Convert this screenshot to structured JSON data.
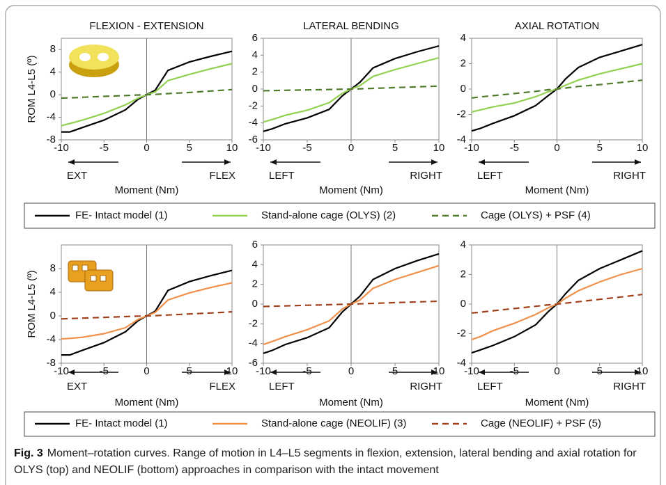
{
  "chart_data": [
    {
      "type": "line",
      "title": "FLEXION - EXTENSION",
      "xlabel": "Moment (Nm)",
      "ylabel": "ROM L4-L5 (º)",
      "direction_labels": [
        "EXT",
        "FLEX"
      ],
      "x": [
        -10,
        -9,
        -7.5,
        -5,
        -2.5,
        -1,
        0,
        1,
        2.5,
        5,
        7.5,
        10
      ],
      "xlim": [
        -10,
        10
      ],
      "xticks": [
        -10,
        -5,
        0,
        5,
        10
      ],
      "ylim": [
        -8,
        10
      ],
      "yticks": [
        -8,
        -4,
        0,
        4,
        8
      ],
      "series": [
        {
          "name": "FE- Intact model (1)",
          "color": "#000000",
          "style": "solid",
          "values": [
            -6.6,
            -6.6,
            -5.8,
            -4.5,
            -2.7,
            -0.8,
            0,
            0.8,
            4.3,
            5.8,
            6.8,
            7.7
          ]
        },
        {
          "name": "Stand-alone cage (OLYS) (2)",
          "color": "#92d050",
          "style": "solid",
          "values": [
            -5.5,
            -5.1,
            -4.5,
            -3.3,
            -1.8,
            -0.6,
            0,
            0.5,
            2.5,
            3.6,
            4.6,
            5.5
          ]
        },
        {
          "name": "Cage (OLYS) + PSF (4)",
          "color": "#4e7a2a",
          "style": "dashed",
          "values": [
            -0.6,
            -0.55,
            -0.45,
            -0.3,
            -0.15,
            -0.05,
            0,
            0.05,
            0.2,
            0.4,
            0.65,
            0.9
          ]
        }
      ]
    },
    {
      "type": "line",
      "title": "LATERAL BENDING",
      "xlabel": "Moment (Nm)",
      "direction_labels": [
        "LEFT",
        "RIGHT"
      ],
      "x": [
        -10,
        -9,
        -7.5,
        -5,
        -2.5,
        -1,
        0,
        1,
        2.5,
        5,
        7.5,
        10
      ],
      "xlim": [
        -10,
        10
      ],
      "xticks": [
        -10,
        -5,
        0,
        5,
        10
      ],
      "ylim": [
        -6,
        6
      ],
      "yticks": [
        -6,
        -4,
        -2,
        0,
        2,
        4,
        6
      ],
      "series": [
        {
          "color": "#000000",
          "style": "solid",
          "values": [
            -5,
            -4.7,
            -4.1,
            -3.4,
            -2.4,
            -0.8,
            0,
            0.8,
            2.5,
            3.6,
            4.4,
            5.1
          ]
        },
        {
          "color": "#92d050",
          "style": "solid",
          "values": [
            -3.9,
            -3.6,
            -3.1,
            -2.5,
            -1.6,
            -0.5,
            0,
            0.4,
            1.5,
            2.3,
            3,
            3.7
          ]
        },
        {
          "color": "#4e7a2a",
          "style": "dashed",
          "values": [
            -0.2,
            -0.18,
            -0.15,
            -0.1,
            -0.05,
            -0.02,
            0,
            0.03,
            0.08,
            0.17,
            0.26,
            0.35
          ]
        }
      ]
    },
    {
      "type": "line",
      "title": "AXIAL ROTATION",
      "xlabel": "Moment (Nm)",
      "direction_labels": [
        "LEFT",
        "RIGHT"
      ],
      "x": [
        -10,
        -9,
        -7.5,
        -5,
        -2.5,
        -1,
        0,
        1,
        2.5,
        5,
        7.5,
        10
      ],
      "xlim": [
        -10,
        10
      ],
      "xticks": [
        -10,
        -5,
        0,
        5,
        10
      ],
      "ylim": [
        -4,
        4
      ],
      "yticks": [
        -4,
        -2,
        0,
        2,
        4
      ],
      "series": [
        {
          "color": "#000000",
          "style": "solid",
          "values": [
            -3.3,
            -3.1,
            -2.7,
            -2.1,
            -1.3,
            -0.5,
            0,
            0.8,
            1.7,
            2.5,
            3,
            3.5
          ]
        },
        {
          "color": "#92d050",
          "style": "solid",
          "values": [
            -1.8,
            -1.65,
            -1.4,
            -1.1,
            -0.6,
            -0.2,
            0,
            0.3,
            0.7,
            1.2,
            1.6,
            2
          ]
        },
        {
          "color": "#4e7a2a",
          "style": "dashed",
          "values": [
            -0.7,
            -0.62,
            -0.52,
            -0.35,
            -0.18,
            -0.05,
            0,
            0.08,
            0.2,
            0.35,
            0.52,
            0.7
          ]
        }
      ]
    },
    {
      "type": "line",
      "xlabel": "Moment (Nm)",
      "ylabel": "ROM L4-L5 (º)",
      "direction_labels": [
        "EXT",
        "FLEX"
      ],
      "x": [
        -10,
        -9,
        -7.5,
        -5,
        -2.5,
        -1,
        0,
        1,
        2.5,
        5,
        7.5,
        10
      ],
      "xlim": [
        -10,
        10
      ],
      "xticks": [
        -10,
        -5,
        0,
        5,
        10
      ],
      "ylim": [
        -8,
        12
      ],
      "yticks": [
        -8,
        -4,
        0,
        4,
        8
      ],
      "series": [
        {
          "name": "FE- Intact model (1)",
          "color": "#000000",
          "style": "solid",
          "values": [
            -6.6,
            -6.6,
            -5.8,
            -4.5,
            -2.7,
            -0.8,
            0,
            0.8,
            4.3,
            5.8,
            6.8,
            7.7
          ]
        },
        {
          "name": "Stand-alone cage (NEOLIF) (3)",
          "color": "#f0904a",
          "style": "solid",
          "values": [
            -3.9,
            -3.8,
            -3.6,
            -3,
            -2,
            -0.6,
            0,
            0.6,
            2.7,
            3.9,
            4.8,
            5.6
          ]
        },
        {
          "name": "Cage (NEOLIF) + PSF (5)",
          "color": "#a0401a",
          "style": "dashed",
          "values": [
            -0.5,
            -0.45,
            -0.38,
            -0.25,
            -0.12,
            -0.04,
            0,
            0.05,
            0.15,
            0.33,
            0.5,
            0.7
          ]
        }
      ]
    },
    {
      "type": "line",
      "xlabel": "Moment (Nm)",
      "direction_labels": [
        "LEFT",
        "RIGHT"
      ],
      "x": [
        -10,
        -9,
        -7.5,
        -5,
        -2.5,
        -1,
        0,
        1,
        2.5,
        5,
        7.5,
        10
      ],
      "xlim": [
        -10,
        10
      ],
      "xticks": [
        -10,
        -5,
        0,
        5,
        10
      ],
      "ylim": [
        -6,
        6
      ],
      "yticks": [
        -6,
        -4,
        -2,
        0,
        2,
        4,
        6
      ],
      "series": [
        {
          "color": "#000000",
          "style": "solid",
          "values": [
            -5,
            -4.7,
            -4.1,
            -3.4,
            -2.4,
            -0.8,
            0,
            0.8,
            2.5,
            3.6,
            4.4,
            5.1
          ]
        },
        {
          "color": "#f0904a",
          "style": "solid",
          "values": [
            -4.1,
            -3.8,
            -3.3,
            -2.6,
            -1.7,
            -0.5,
            0,
            0.4,
            1.6,
            2.5,
            3.2,
            3.9
          ]
        },
        {
          "color": "#a0401a",
          "style": "dashed",
          "values": [
            -0.25,
            -0.22,
            -0.18,
            -0.12,
            -0.06,
            -0.02,
            0,
            0.03,
            0.07,
            0.15,
            0.22,
            0.3
          ]
        }
      ]
    },
    {
      "type": "line",
      "xlabel": "Moment (Nm)",
      "direction_labels": [
        "LEFT",
        "RIGHT"
      ],
      "x": [
        -10,
        -9,
        -7.5,
        -5,
        -2.5,
        -1,
        0,
        1,
        2.5,
        5,
        7.5,
        10
      ],
      "xlim": [
        -10,
        10
      ],
      "xticks": [
        -10,
        -5,
        0,
        5,
        10
      ],
      "ylim": [
        -4,
        4
      ],
      "yticks": [
        -4,
        -2,
        0,
        2,
        4
      ],
      "series": [
        {
          "color": "#000000",
          "style": "solid",
          "values": [
            -3.3,
            -3.1,
            -2.8,
            -2.2,
            -1.4,
            -0.5,
            0,
            0.7,
            1.6,
            2.4,
            3,
            3.6
          ]
        },
        {
          "color": "#f0904a",
          "style": "solid",
          "values": [
            -2.4,
            -2.2,
            -1.8,
            -1.3,
            -0.7,
            -0.25,
            0,
            0.4,
            0.9,
            1.5,
            2,
            2.4
          ]
        },
        {
          "color": "#a0401a",
          "style": "dashed",
          "values": [
            -0.6,
            -0.55,
            -0.45,
            -0.3,
            -0.15,
            -0.05,
            0,
            0.06,
            0.16,
            0.32,
            0.48,
            0.65
          ]
        }
      ]
    }
  ],
  "caption": {
    "label": "Fig. 3",
    "text": "Moment–rotation curves. Range of motion in L4–L5 segments in flexion, extension, lateral bending and axial rotation for OLYS (top) and NEOLIF (bottom) approaches in comparison with the intact movement"
  }
}
